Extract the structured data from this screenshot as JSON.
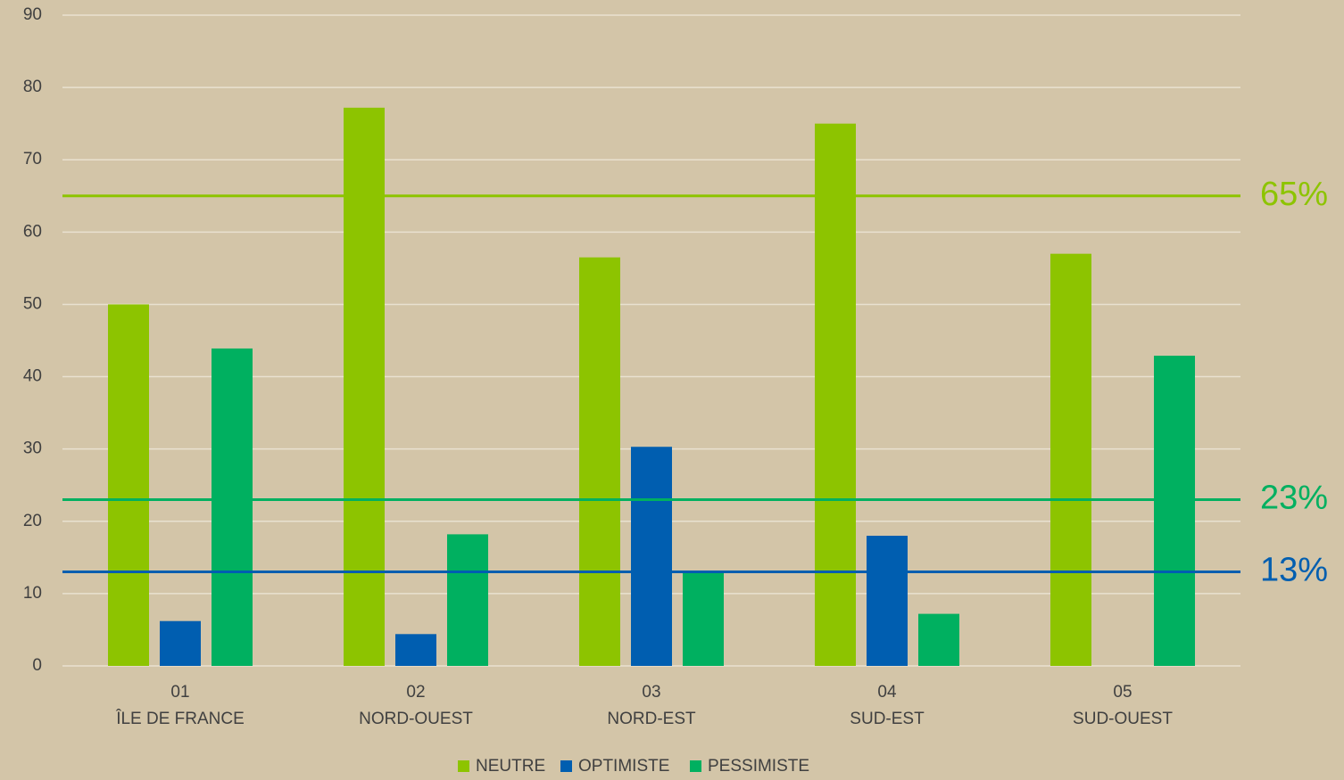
{
  "chart_data": {
    "type": "bar",
    "categories": [
      [
        "01",
        "ÎLE DE FRANCE"
      ],
      [
        "02",
        "NORD-OUEST"
      ],
      [
        "03",
        "NORD-EST"
      ],
      [
        "04",
        "SUD-EST"
      ],
      [
        "05",
        "SUD-OUEST"
      ]
    ],
    "series": [
      {
        "name": "NEUTRE",
        "color": "#8dc400",
        "values": [
          50,
          77.2,
          56.5,
          75,
          57
        ]
      },
      {
        "name": "OPTIMISTE",
        "color": "#005eb0",
        "values": [
          6.2,
          4.4,
          30.3,
          18,
          0
        ]
      },
      {
        "name": "PESSIMISTE",
        "color": "#00b060",
        "values": [
          43.9,
          18.2,
          13.1,
          7.2,
          42.9
        ]
      }
    ],
    "reference_lines": [
      {
        "value": 65,
        "label": "65%",
        "color": "#8dc400"
      },
      {
        "value": 23,
        "label": "23%",
        "color": "#00b060"
      },
      {
        "value": 13,
        "label": "13%",
        "color": "#005eb0"
      }
    ],
    "ylim": [
      0,
      90
    ],
    "yticks": [
      0,
      10,
      20,
      30,
      40,
      50,
      60,
      70,
      80,
      90
    ],
    "grid": true,
    "legend": "bottom"
  }
}
